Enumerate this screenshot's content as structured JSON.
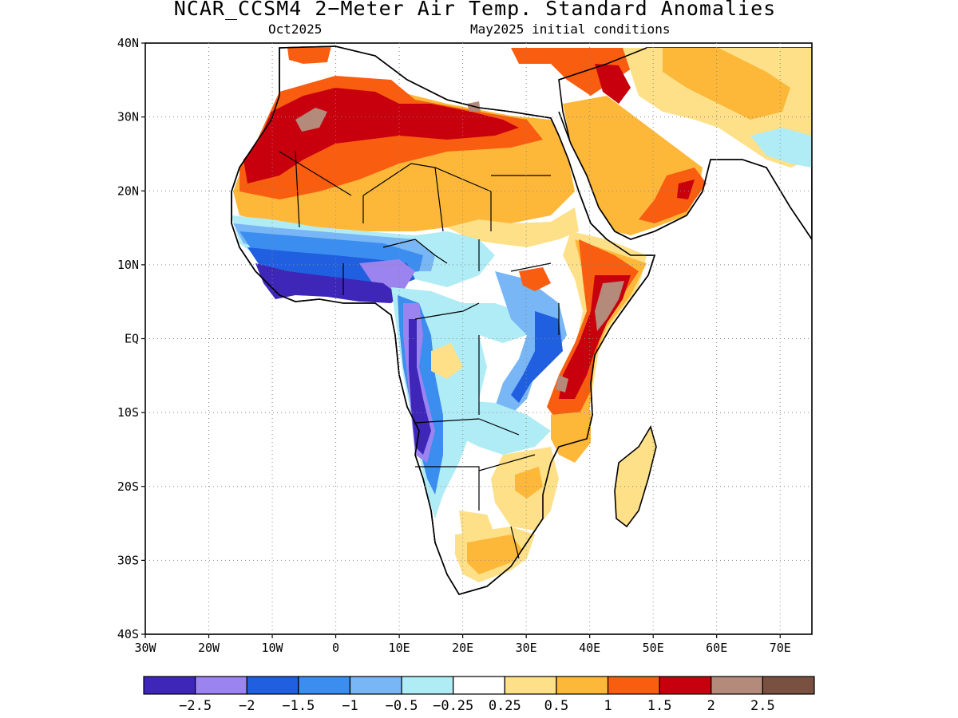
{
  "title": "NCAR_CCSM4 2−Meter Air Temp. Standard Anomalies",
  "subtitle_left": "Oct2025",
  "subtitle_right": "May2025 initial conditions",
  "map": {
    "lon_range": [
      -30,
      75
    ],
    "lat_range": [
      -40,
      40
    ],
    "lat_ticks": [
      {
        "value": 40,
        "label": "40N"
      },
      {
        "value": 30,
        "label": "30N"
      },
      {
        "value": 20,
        "label": "20N"
      },
      {
        "value": 10,
        "label": "10N"
      },
      {
        "value": 0,
        "label": "EQ"
      },
      {
        "value": -10,
        "label": "10S"
      },
      {
        "value": -20,
        "label": "20S"
      },
      {
        "value": -30,
        "label": "30S"
      },
      {
        "value": -40,
        "label": "40S"
      }
    ],
    "lon_ticks": [
      {
        "value": -30,
        "label": "30W"
      },
      {
        "value": -20,
        "label": "20W"
      },
      {
        "value": -10,
        "label": "10W"
      },
      {
        "value": 0,
        "label": "0"
      },
      {
        "value": 10,
        "label": "10E"
      },
      {
        "value": 20,
        "label": "20E"
      },
      {
        "value": 30,
        "label": "30E"
      },
      {
        "value": 40,
        "label": "40E"
      },
      {
        "value": 50,
        "label": "50E"
      },
      {
        "value": 60,
        "label": "60E"
      },
      {
        "value": 70,
        "label": "70E"
      }
    ],
    "grid": "dotted"
  },
  "colorbar": {
    "colors": [
      "#3d26b8",
      "#9b83f0",
      "#1f5fe0",
      "#3b8ef0",
      "#78b6f5",
      "#b0ecf5",
      "#ffffff",
      "#fde088",
      "#fdb83a",
      "#f95d10",
      "#c8000e",
      "#b48a7a",
      "#7a5040"
    ],
    "labels": [
      "−2.5",
      "−2",
      "−1.5",
      "−1",
      "−0.5",
      "−0.25",
      "0.25",
      "0.5",
      "1",
      "1.5",
      "2",
      "2.5"
    ]
  },
  "colors": {
    "warm_1": "#fde088",
    "warm_2": "#fdb83a",
    "warm_3": "#f95d10",
    "warm_4": "#c8000e",
    "warm_5": "#b48a7a",
    "cool_1": "#b0ecf5",
    "cool_2": "#78b6f5",
    "cool_3": "#3b8ef0",
    "cool_4": "#1f5fe0",
    "cool_5": "#9b83f0",
    "cool_6": "#3d26b8"
  }
}
